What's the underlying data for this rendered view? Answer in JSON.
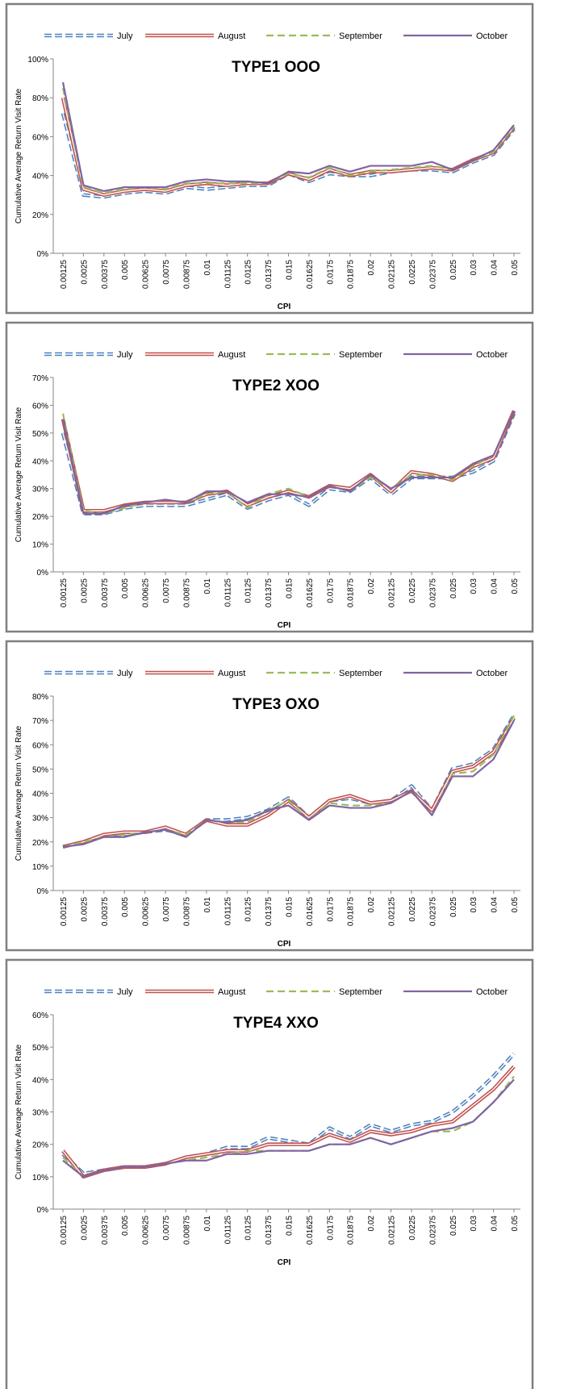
{
  "chart_data": [
    {
      "type": "line",
      "title": "TYPE1 OOO",
      "x_label": "CPI",
      "y_label": "Cumulative Average Return Visit Rate",
      "grid": false,
      "legend": "top",
      "categories": [
        "0.00125",
        "0.0025",
        "0.00375",
        "0.005",
        "0.00625",
        "0.0075",
        "0.00875",
        "0.01",
        "0.01125",
        "0.0125",
        "0.01375",
        "0.015",
        "0.01625",
        "0.0175",
        "0.01875",
        "0.02",
        "0.02125",
        "0.0225",
        "0.02375",
        "0.025",
        "0.03",
        "0.04",
        "0.05"
      ],
      "ylim": [
        0,
        100
      ],
      "yticks": [
        {
          "value": 0,
          "label": "0%"
        },
        {
          "value": 20,
          "label": "20%"
        },
        {
          "value": 40,
          "label": "40%"
        },
        {
          "value": 60,
          "label": "60%"
        },
        {
          "value": 80,
          "label": "80%"
        },
        {
          "value": 100,
          "label": "100%"
        }
      ],
      "series": [
        {
          "name": "July",
          "color": "#4f81bd",
          "line_style": "double-dashed",
          "values": [
            72,
            30,
            29,
            31,
            32,
            31,
            34,
            33,
            34,
            35,
            35,
            41,
            37,
            41,
            40,
            40,
            42,
            43,
            43,
            42,
            47,
            51,
            64
          ]
        },
        {
          "name": "August",
          "color": "#c0504d",
          "line_style": "double",
          "values": [
            80,
            33,
            30,
            32,
            33,
            32,
            35,
            36,
            35,
            36,
            36,
            41,
            38,
            43,
            40,
            42,
            42,
            43,
            44,
            43,
            48,
            52,
            65
          ]
        },
        {
          "name": "September",
          "color": "#9bbb59",
          "line_style": "dashed",
          "values": [
            85,
            34,
            31,
            33,
            34,
            33,
            36,
            36,
            36,
            36,
            36,
            41,
            39,
            44,
            40,
            42,
            43,
            44,
            45,
            43,
            48,
            52,
            65
          ]
        },
        {
          "name": "October",
          "color": "#8064a2",
          "line_style": "solid",
          "values": [
            88,
            35,
            32,
            34,
            34,
            34,
            37,
            38,
            37,
            37,
            36,
            42,
            41,
            45,
            42,
            45,
            45,
            45,
            47,
            43,
            48,
            53,
            66
          ]
        }
      ]
    },
    {
      "type": "line",
      "title": "TYPE2 XOO",
      "x_label": "CPI",
      "y_label": "Cumulative Average Return Visit Rate",
      "grid": false,
      "legend": "top",
      "categories": [
        "0.00125",
        "0.0025",
        "0.00375",
        "0.005",
        "0.00625",
        "0.0075",
        "0.00875",
        "0.01",
        "0.01125",
        "0.0125",
        "0.01375",
        "0.015",
        "0.01625",
        "0.0175",
        "0.01875",
        "0.02",
        "0.02125",
        "0.0225",
        "0.02375",
        "0.025",
        "0.03",
        "0.04",
        "0.05"
      ],
      "ylim": [
        0,
        70
      ],
      "yticks": [
        {
          "value": 0,
          "label": "0%"
        },
        {
          "value": 10,
          "label": "10%"
        },
        {
          "value": 20,
          "label": "20%"
        },
        {
          "value": 30,
          "label": "30%"
        },
        {
          "value": 40,
          "label": "40%"
        },
        {
          "value": 50,
          "label": "50%"
        },
        {
          "value": 60,
          "label": "60%"
        },
        {
          "value": 70,
          "label": "70%"
        }
      ],
      "series": [
        {
          "name": "July",
          "color": "#4f81bd",
          "line_style": "double-dashed",
          "values": [
            50,
            21,
            21,
            23,
            24,
            24,
            24,
            26,
            28,
            23,
            26,
            28,
            24,
            30,
            29,
            34,
            28,
            34,
            34,
            34,
            36,
            40,
            57
          ]
        },
        {
          "name": "August",
          "color": "#c0504d",
          "line_style": "double",
          "values": [
            55,
            22,
            22,
            24,
            25,
            25,
            25,
            28,
            29,
            24,
            27,
            29,
            27,
            31,
            30,
            35,
            29,
            36,
            35,
            33,
            38,
            41,
            58
          ]
        },
        {
          "name": "September",
          "color": "#9bbb59",
          "line_style": "dashed",
          "values": [
            57,
            22,
            21,
            23,
            25,
            26,
            25,
            28,
            29,
            23,
            28,
            30,
            27,
            31,
            29,
            34,
            30,
            35,
            35,
            33,
            38,
            42,
            58
          ]
        },
        {
          "name": "October",
          "color": "#8064a2",
          "line_style": "solid",
          "values": [
            55,
            21,
            21,
            24,
            25,
            26,
            25,
            29,
            29,
            25,
            28,
            28,
            27,
            31,
            29,
            35,
            30,
            34,
            34,
            34,
            39,
            42,
            58
          ]
        }
      ]
    },
    {
      "type": "line",
      "title": "TYPE3 OXO",
      "x_label": "CPI",
      "y_label": "Cumulative Average Return Visit Rate",
      "grid": false,
      "legend": "top",
      "categories": [
        "0.00125",
        "0.0025",
        "0.00375",
        "0.005",
        "0.00625",
        "0.0075",
        "0.00875",
        "0.01",
        "0.01125",
        "0.0125",
        "0.01375",
        "0.015",
        "0.01625",
        "0.0175",
        "0.01875",
        "0.02",
        "0.02125",
        "0.0225",
        "0.02375",
        "0.025",
        "0.03",
        "0.04",
        "0.05"
      ],
      "ylim": [
        0,
        80
      ],
      "yticks": [
        {
          "value": 0,
          "label": "0%"
        },
        {
          "value": 10,
          "label": "10%"
        },
        {
          "value": 20,
          "label": "20%"
        },
        {
          "value": 30,
          "label": "30%"
        },
        {
          "value": 40,
          "label": "40%"
        },
        {
          "value": 50,
          "label": "50%"
        },
        {
          "value": 60,
          "label": "60%"
        },
        {
          "value": 70,
          "label": "70%"
        },
        {
          "value": 80,
          "label": "80%"
        }
      ],
      "series": [
        {
          "name": "July",
          "color": "#4f81bd",
          "line_style": "double-dashed",
          "values": [
            18,
            20,
            23,
            23,
            24,
            25,
            23,
            29,
            29,
            30,
            33,
            38,
            30,
            37,
            38,
            36,
            37,
            43,
            33,
            50,
            52,
            58,
            72
          ]
        },
        {
          "name": "August",
          "color": "#c0504d",
          "line_style": "double",
          "values": [
            18,
            20,
            23,
            24,
            24,
            26,
            23,
            29,
            27,
            27,
            31,
            37,
            30,
            37,
            39,
            36,
            37,
            41,
            33,
            49,
            51,
            57,
            71
          ]
        },
        {
          "name": "September",
          "color": "#9bbb59",
          "line_style": "dashed",
          "values": [
            18,
            20,
            22,
            23,
            24,
            25,
            23,
            29,
            28,
            28,
            33,
            37,
            29,
            36,
            35,
            35,
            36,
            41,
            31,
            48,
            49,
            56,
            72
          ]
        },
        {
          "name": "October",
          "color": "#8064a2",
          "line_style": "solid",
          "values": [
            18,
            19,
            22,
            22,
            24,
            25,
            22,
            29,
            28,
            29,
            33,
            35,
            29,
            35,
            34,
            34,
            36,
            41,
            31,
            47,
            47,
            54,
            70
          ]
        }
      ]
    },
    {
      "type": "line",
      "title": "TYPE4 XXO",
      "x_label": "CPI",
      "y_label": "Cumulative Average Return Visit Rate",
      "grid": false,
      "legend": "top",
      "categories": [
        "0.00125",
        "0.0025",
        "0.00375",
        "0.005",
        "0.00625",
        "0.0075",
        "0.00875",
        "0.01",
        "0.01125",
        "0.0125",
        "0.01375",
        "0.015",
        "0.01625",
        "0.0175",
        "0.01875",
        "0.02",
        "0.02125",
        "0.0225",
        "0.02375",
        "0.025",
        "0.03",
        "0.04",
        "0.05"
      ],
      "ylim": [
        0,
        60
      ],
      "yticks": [
        {
          "value": 0,
          "label": "0%"
        },
        {
          "value": 10,
          "label": "10%"
        },
        {
          "value": 20,
          "label": "20%"
        },
        {
          "value": 30,
          "label": "30%"
        },
        {
          "value": 40,
          "label": "40%"
        },
        {
          "value": 50,
          "label": "50%"
        },
        {
          "value": 60,
          "label": "60%"
        }
      ],
      "series": [
        {
          "name": "July",
          "color": "#4f81bd",
          "line_style": "double-dashed",
          "values": [
            17,
            11,
            12,
            13,
            13,
            14,
            16,
            17,
            19,
            19,
            22,
            21,
            20,
            25,
            22,
            26,
            24,
            26,
            27,
            30,
            35,
            41,
            48
          ]
        },
        {
          "name": "August",
          "color": "#c0504d",
          "line_style": "double",
          "values": [
            18,
            10,
            12,
            13,
            13,
            14,
            16,
            17,
            18,
            18,
            20,
            20,
            20,
            23,
            21,
            24,
            23,
            24,
            26,
            27,
            32,
            37,
            44
          ]
        },
        {
          "name": "September",
          "color": "#9bbb59",
          "line_style": "dashed",
          "values": [
            16,
            10,
            12,
            13,
            13,
            14,
            15,
            16,
            17,
            18,
            18,
            18,
            18,
            20,
            20,
            22,
            20,
            22,
            24,
            24,
            27,
            33,
            41
          ]
        },
        {
          "name": "October",
          "color": "#8064a2",
          "line_style": "solid",
          "values": [
            15,
            10,
            12,
            13,
            13,
            14,
            15,
            15,
            17,
            17,
            18,
            18,
            18,
            20,
            20,
            22,
            20,
            22,
            24,
            25,
            27,
            33,
            40
          ]
        }
      ]
    }
  ]
}
